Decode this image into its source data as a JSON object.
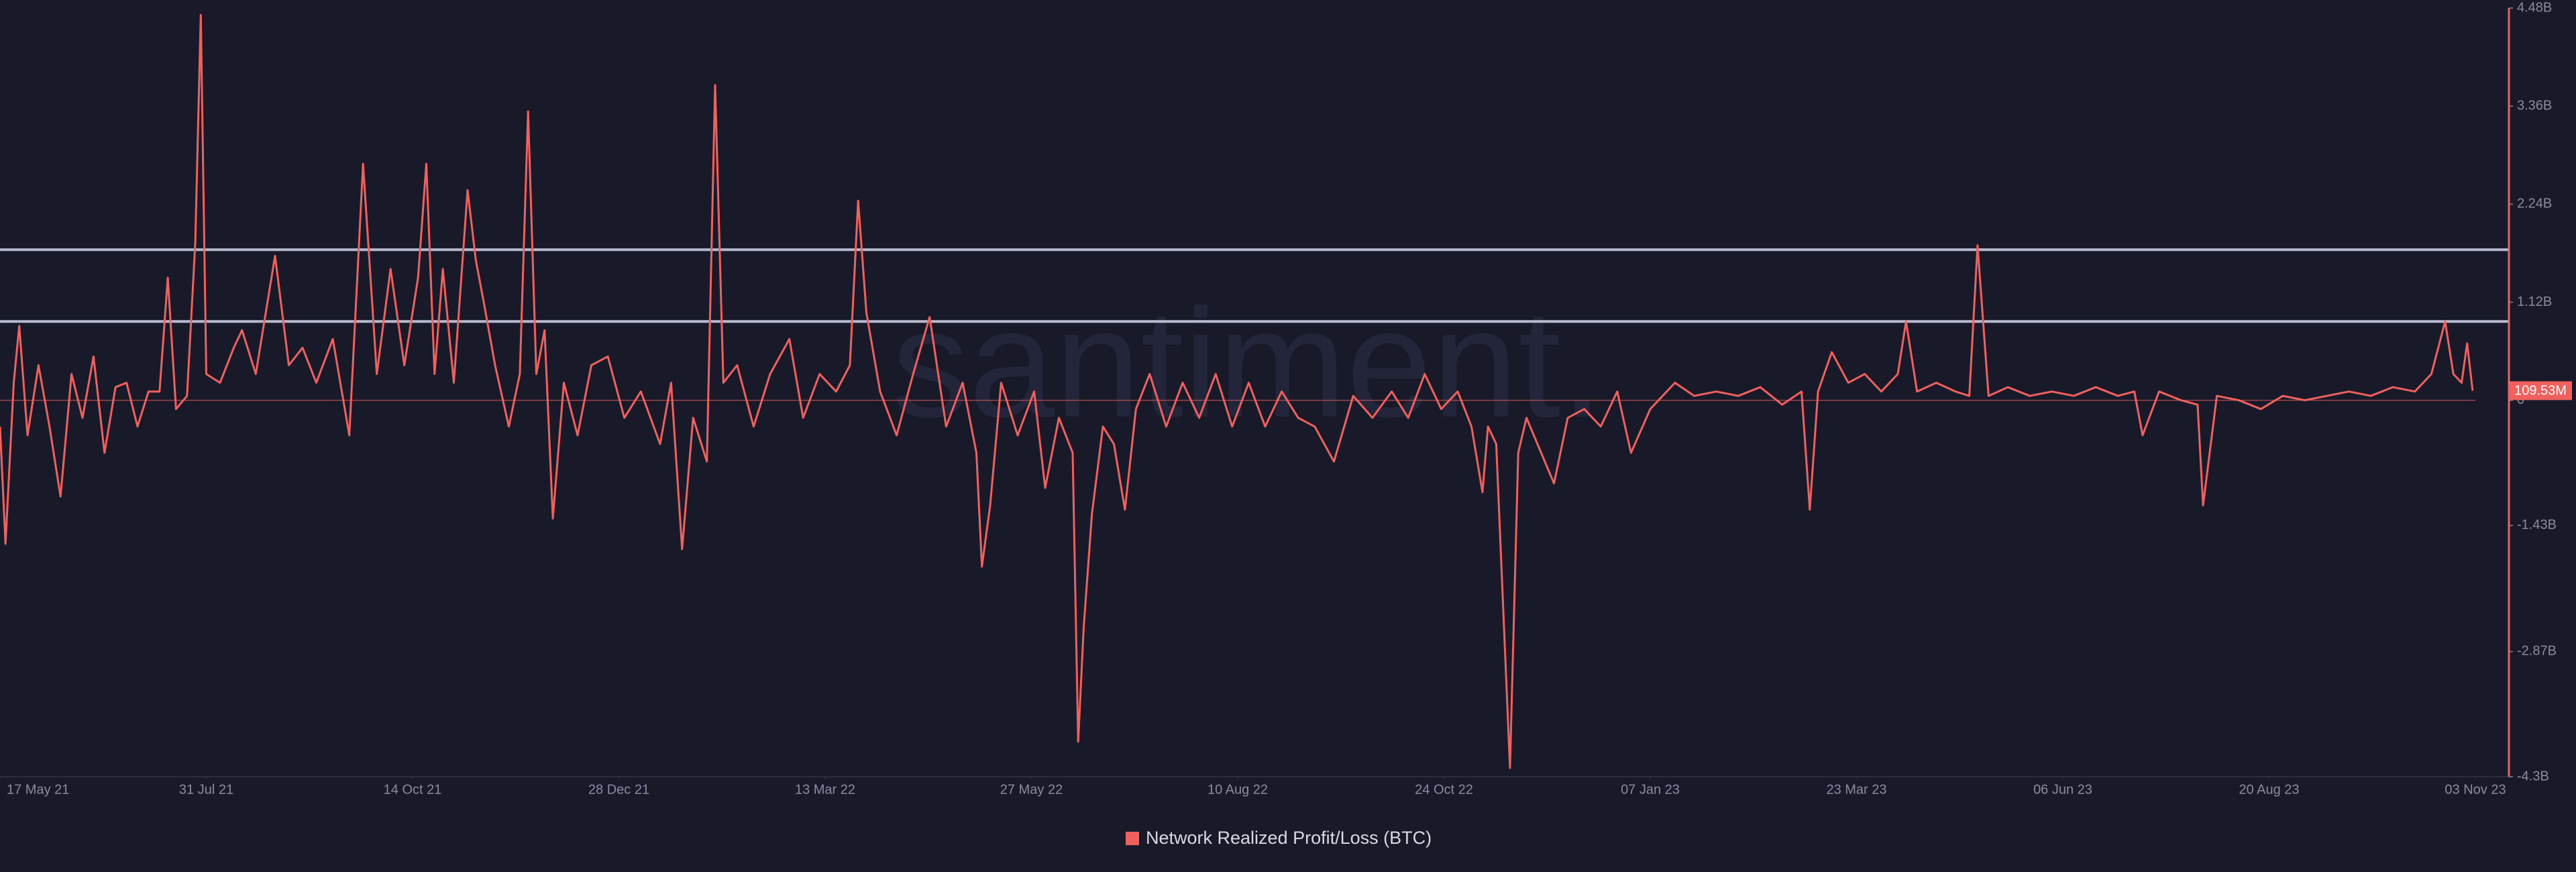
{
  "chart_data": {
    "type": "line",
    "watermark": "santiment.",
    "xlim": [
      "2021-05-17",
      "2023-11-03"
    ],
    "xticks": [
      {
        "value": "2021-05-17",
        "label": "17 May 21"
      },
      {
        "value": "2021-07-31",
        "label": "31 Jul 21"
      },
      {
        "value": "2021-10-14",
        "label": "14 Oct 21"
      },
      {
        "value": "2021-12-28",
        "label": "28 Dec 21"
      },
      {
        "value": "2022-03-13",
        "label": "13 Mar 22"
      },
      {
        "value": "2022-05-27",
        "label": "27 May 22"
      },
      {
        "value": "2022-08-10",
        "label": "10 Aug 22"
      },
      {
        "value": "2022-10-24",
        "label": "24 Oct 22"
      },
      {
        "value": "2023-01-07",
        "label": "07 Jan 23"
      },
      {
        "value": "2023-03-23",
        "label": "23 Mar 23"
      },
      {
        "value": "2023-06-06",
        "label": "06 Jun 23"
      },
      {
        "value": "2023-08-20",
        "label": "20 Aug 23"
      },
      {
        "value": "2023-11-03",
        "label": "03 Nov 23"
      }
    ],
    "ylim": [
      -4.3,
      4.48
    ],
    "yticks": [
      {
        "value": 4.48,
        "label": "4.48B"
      },
      {
        "value": 3.36,
        "label": "3.36B"
      },
      {
        "value": 2.24,
        "label": "2.24B"
      },
      {
        "value": 1.12,
        "label": "1.12B"
      },
      0,
      {
        "value": -1.43,
        "label": "-1.43B"
      },
      {
        "value": -2.87,
        "label": "-2.87B"
      },
      {
        "value": -4.3,
        "label": "-4.3B"
      }
    ],
    "reference_lines": [
      1.72,
      0.9
    ],
    "last_value": {
      "value": 0.10953,
      "label": "109.53M"
    },
    "x": [
      "2021-05-17",
      "2021-05-19",
      "2021-05-22",
      "2021-05-24",
      "2021-05-27",
      "2021-05-31",
      "2021-06-04",
      "2021-06-08",
      "2021-06-12",
      "2021-06-16",
      "2021-06-20",
      "2021-06-24",
      "2021-06-28",
      "2021-07-02",
      "2021-07-06",
      "2021-07-10",
      "2021-07-14",
      "2021-07-17",
      "2021-07-20",
      "2021-07-24",
      "2021-07-27",
      "2021-07-29",
      "2021-07-31",
      "2021-08-05",
      "2021-08-10",
      "2021-08-13",
      "2021-08-18",
      "2021-08-25",
      "2021-08-30",
      "2021-09-04",
      "2021-09-09",
      "2021-09-15",
      "2021-09-21",
      "2021-09-26",
      "2021-10-01",
      "2021-10-06",
      "2021-10-11",
      "2021-10-16",
      "2021-10-19",
      "2021-10-22",
      "2021-10-25",
      "2021-10-29",
      "2021-11-03",
      "2021-11-06",
      "2021-11-09",
      "2021-11-13",
      "2021-11-18",
      "2021-11-22",
      "2021-11-25",
      "2021-11-28",
      "2021-12-01",
      "2021-12-04",
      "2021-12-08",
      "2021-12-13",
      "2021-12-18",
      "2021-12-24",
      "2021-12-30",
      "2022-01-05",
      "2022-01-12",
      "2022-01-16",
      "2022-01-20",
      "2022-01-24",
      "2022-01-29",
      "2022-02-01",
      "2022-02-04",
      "2022-02-09",
      "2022-02-15",
      "2022-02-21",
      "2022-02-28",
      "2022-03-05",
      "2022-03-11",
      "2022-03-17",
      "2022-03-22",
      "2022-03-25",
      "2022-03-28",
      "2022-04-02",
      "2022-04-08",
      "2022-04-14",
      "2022-04-20",
      "2022-04-26",
      "2022-05-02",
      "2022-05-07",
      "2022-05-09",
      "2022-05-12",
      "2022-05-16",
      "2022-05-22",
      "2022-05-28",
      "2022-06-01",
      "2022-06-06",
      "2022-06-11",
      "2022-06-13",
      "2022-06-15",
      "2022-06-18",
      "2022-06-22",
      "2022-06-26",
      "2022-06-30",
      "2022-07-04",
      "2022-07-09",
      "2022-07-15",
      "2022-07-21",
      "2022-07-27",
      "2022-08-02",
      "2022-08-08",
      "2022-08-14",
      "2022-08-20",
      "2022-08-26",
      "2022-09-01",
      "2022-09-07",
      "2022-09-14",
      "2022-09-21",
      "2022-09-28",
      "2022-10-05",
      "2022-10-11",
      "2022-10-17",
      "2022-10-23",
      "2022-10-29",
      "2022-11-03",
      "2022-11-07",
      "2022-11-09",
      "2022-11-12",
      "2022-11-17",
      "2022-11-20",
      "2022-11-23",
      "2022-11-27",
      "2022-12-03",
      "2022-12-08",
      "2022-12-14",
      "2022-12-20",
      "2022-12-26",
      "2022-12-31",
      "2023-01-07",
      "2023-01-16",
      "2023-01-23",
      "2023-01-31",
      "2023-02-08",
      "2023-02-16",
      "2023-02-24",
      "2023-03-03",
      "2023-03-06",
      "2023-03-09",
      "2023-03-14",
      "2023-03-20",
      "2023-03-26",
      "2023-04-01",
      "2023-04-07",
      "2023-04-10",
      "2023-04-14",
      "2023-04-21",
      "2023-04-28",
      "2023-05-03",
      "2023-05-06",
      "2023-05-10",
      "2023-05-17",
      "2023-05-25",
      "2023-06-02",
      "2023-06-10",
      "2023-06-18",
      "2023-06-26",
      "2023-07-02",
      "2023-07-05",
      "2023-07-11",
      "2023-07-19",
      "2023-07-25",
      "2023-07-27",
      "2023-08-01",
      "2023-08-09",
      "2023-08-17",
      "2023-08-25",
      "2023-09-02",
      "2023-09-10",
      "2023-09-18",
      "2023-09-26",
      "2023-10-04",
      "2023-10-12",
      "2023-10-18",
      "2023-10-23",
      "2023-10-26",
      "2023-10-29",
      "2023-10-31",
      "2023-11-02"
    ],
    "series": [
      {
        "name": "Network Realized Profit/Loss (BTC)",
        "color": "#f0605d",
        "values": [
          -0.3,
          -1.64,
          0.2,
          0.85,
          -0.4,
          0.4,
          -0.3,
          -1.1,
          0.3,
          -0.2,
          0.5,
          -0.6,
          0.15,
          0.2,
          -0.3,
          0.1,
          0.1,
          1.4,
          -0.1,
          0.05,
          1.8,
          4.4,
          0.3,
          0.2,
          0.6,
          0.8,
          0.3,
          1.65,
          0.4,
          0.6,
          0.2,
          0.7,
          -0.4,
          2.7,
          0.3,
          1.5,
          0.4,
          1.4,
          2.7,
          0.3,
          1.5,
          0.2,
          2.4,
          1.6,
          1.1,
          0.4,
          -0.3,
          0.3,
          3.3,
          0.3,
          0.8,
          -1.35,
          0.2,
          -0.4,
          0.4,
          0.5,
          -0.2,
          0.1,
          -0.5,
          0.2,
          -1.7,
          -0.2,
          -0.7,
          3.6,
          0.2,
          0.4,
          -0.3,
          0.3,
          0.7,
          -0.2,
          0.3,
          0.1,
          0.4,
          2.28,
          1.0,
          0.1,
          -0.4,
          0.3,
          0.95,
          -0.3,
          0.2,
          -0.6,
          -1.9,
          -1.2,
          0.2,
          -0.4,
          0.1,
          -1.0,
          -0.2,
          -0.6,
          -3.9,
          -2.6,
          -1.3,
          -0.3,
          -0.5,
          -1.25,
          -0.1,
          0.3,
          -0.3,
          0.2,
          -0.2,
          0.3,
          -0.3,
          0.2,
          -0.3,
          0.1,
          -0.2,
          -0.3,
          -0.7,
          0.05,
          -0.2,
          0.1,
          -0.2,
          0.3,
          -0.1,
          0.1,
          -0.3,
          -1.05,
          -0.3,
          -0.5,
          -4.2,
          -0.6,
          -0.2,
          -0.5,
          -0.95,
          -0.2,
          -0.1,
          -0.3,
          0.1,
          -0.6,
          -0.1,
          0.2,
          0.05,
          0.1,
          0.05,
          0.15,
          -0.05,
          0.1,
          -1.25,
          0.1,
          0.55,
          0.2,
          0.3,
          0.1,
          0.3,
          0.9,
          0.1,
          0.2,
          0.1,
          0.05,
          1.77,
          0.05,
          0.15,
          0.05,
          0.1,
          0.05,
          0.15,
          0.05,
          0.1,
          -0.4,
          0.1,
          0,
          -0.05,
          -1.2,
          0.05,
          0,
          -0.1,
          0.05,
          0,
          0.05,
          0.1,
          0.05,
          0.15,
          0.1,
          0.3,
          0.9,
          0.3,
          0.2,
          0.65,
          0.10953
        ]
      }
    ]
  }
}
